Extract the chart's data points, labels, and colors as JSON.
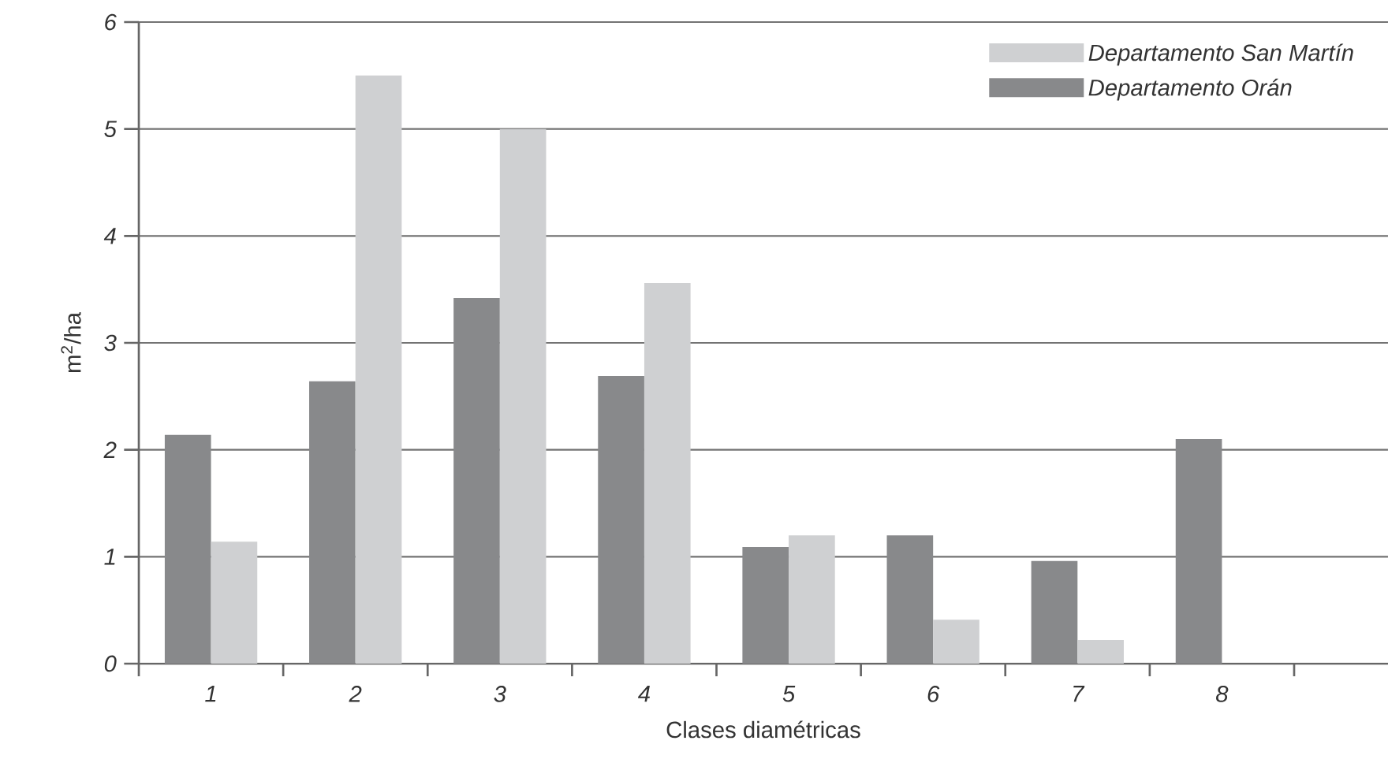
{
  "chart_data": {
    "type": "bar",
    "xlabel": "Clases diamétricas",
    "ylabel": "m$^{2}$/ha",
    "categories": [
      "1",
      "2",
      "3",
      "4",
      "5",
      "6",
      "7",
      "8"
    ],
    "series": [
      {
        "name": "Departamento Orán",
        "color": "#88898b",
        "values": [
          2.14,
          2.64,
          3.42,
          2.69,
          1.09,
          1.2,
          0.96,
          2.1
        ]
      },
      {
        "name": "Departamento San Martín",
        "color": "#cfd0d2",
        "values": [
          1.14,
          5.5,
          5.0,
          3.56,
          1.2,
          0.41,
          0.22,
          null
        ]
      }
    ],
    "ylim": [
      0,
      6
    ],
    "yticks": [
      0,
      1,
      2,
      3,
      4,
      5,
      6
    ],
    "grid": "y",
    "legend": "top right"
  }
}
